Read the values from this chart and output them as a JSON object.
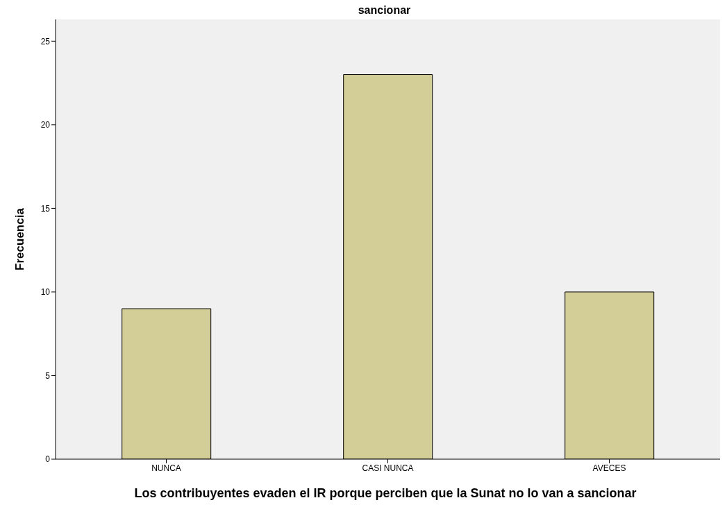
{
  "chart_data": {
    "type": "bar",
    "title": "sancionar",
    "xlabel": "Los contribuyentes evaden el IR porque perciben que la Sunat no lo van a sancionar",
    "ylabel": "Frecuencia",
    "categories": [
      "NUNCA",
      "CASI NUNCA",
      "AVECES"
    ],
    "values": [
      9,
      23,
      10
    ],
    "color": "#d3ce97",
    "ylim": [
      0,
      26.3
    ],
    "yticks": [
      0,
      5,
      10,
      15,
      20,
      25
    ]
  }
}
